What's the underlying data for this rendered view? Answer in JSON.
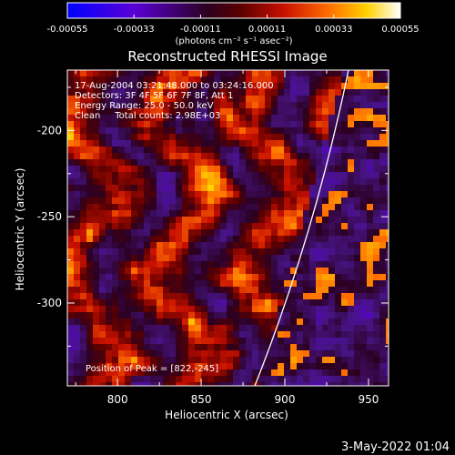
{
  "colorbar": {
    "min": -0.00055,
    "max": 0.00055,
    "tick_labels": [
      "-0.00055",
      "-0.00033",
      "-0.00011",
      "0.00011",
      "0.00033",
      "0.00055"
    ],
    "tick_values": [
      -0.00055,
      -0.00033,
      -0.00011,
      0.00011,
      0.00033,
      0.00055
    ],
    "units_label": "(photons cm⁻² s⁻¹ asec⁻²)",
    "colormap_stops": [
      "#0000ff",
      "#5a00d6",
      "#2b0020",
      "#5c0000",
      "#c81000",
      "#ff6a00",
      "#ffd200",
      "#ffffff"
    ]
  },
  "plot": {
    "title": "Reconstructed RHESSI Image",
    "xlabel": "Heliocentric X (arcsec)",
    "ylabel": "Heliocentric Y (arcsec)",
    "xlim": [
      770,
      962
    ],
    "ylim": [
      -348,
      -165
    ],
    "xticks": [
      "800",
      "850",
      "900",
      "950"
    ],
    "xtick_values": [
      800,
      850,
      900,
      950
    ],
    "yticks": [
      "-200",
      "-250",
      "-300"
    ],
    "ytick_values": [
      -200,
      -250,
      -300
    ],
    "limb_color": "#ffffff"
  },
  "annotations": {
    "line1": "17-Aug-2004 03:21:48.000 to 03:24:16.000",
    "line2": "Detectors: 3F 4F 5F 6F 7F 8F, Att 1",
    "line3": "Energy Range: 25.0 - 50.0 keV",
    "line4": "Clean     Total counts: 2.98E+03",
    "peak": "Position of Peak = [822,-245]"
  },
  "footer": {
    "date": "3-May-2022 01:04"
  }
}
